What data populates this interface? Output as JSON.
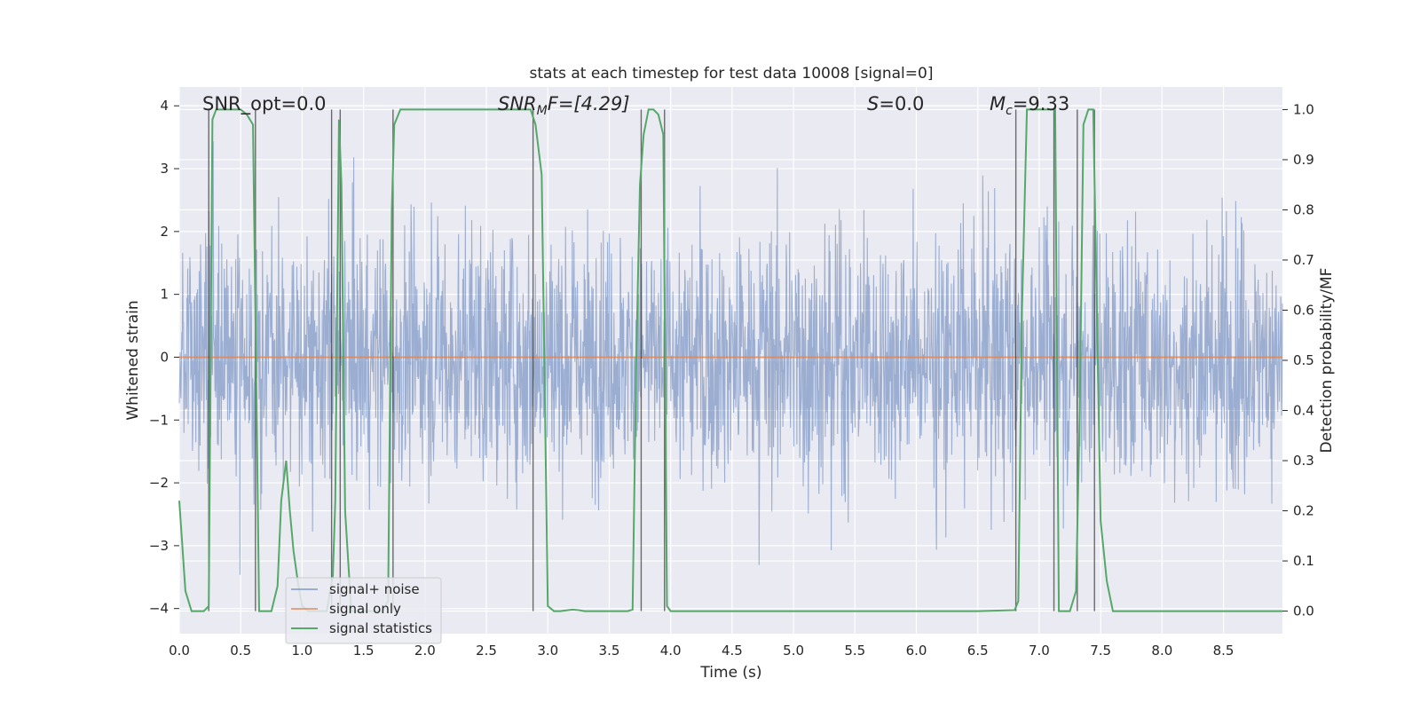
{
  "chart_data": {
    "type": "line",
    "title": "stats at each timestep for test data 10008 [signal=0]",
    "xlabel": "Time (s)",
    "ylabel_left": "Whitened strain",
    "ylabel_right": "Detection probability/MF",
    "xlim": [
      0.0,
      8.98
    ],
    "ylim_left": [
      -4.4,
      4.3
    ],
    "ylim_right": [
      -0.045,
      1.045
    ],
    "x_ticks": [
      "0.0",
      "0.5",
      "1.0",
      "1.5",
      "2.0",
      "2.5",
      "3.0",
      "3.5",
      "4.0",
      "4.5",
      "5.0",
      "5.5",
      "6.0",
      "6.5",
      "7.0",
      "7.5",
      "8.0",
      "8.5"
    ],
    "y_ticks_left": [
      "−4",
      "−3",
      "−2",
      "−1",
      "0",
      "1",
      "2",
      "3",
      "4"
    ],
    "y_ticks_right": [
      "0.0",
      "0.1",
      "0.2",
      "0.3",
      "0.4",
      "0.5",
      "0.6",
      "0.7",
      "0.8",
      "0.9",
      "1.0"
    ],
    "grid": true,
    "legend_position": "lower-left",
    "annotations": {
      "snr_opt": "SNR_opt=0.0",
      "snr_mf_base": "SNR",
      "snr_mf_sub": "M",
      "snr_mf_rest": "F=[4.29]",
      "s_base": "S",
      "s_rest": "=0.0",
      "mc_base": "M",
      "mc_sub": "c",
      "mc_rest": "=9.33"
    },
    "series": [
      {
        "name": "signal+ noise",
        "color": "#4c72b0",
        "description_noise": {
          "envelope_typical": 1.6,
          "peak_max": 4.0,
          "peak_min": -4.0
        }
      },
      {
        "name": "signal only",
        "color": "#dd8452",
        "y_constant": 0.0
      },
      {
        "name": "signal statistics",
        "color": "#55a868",
        "axis": "right",
        "x": [
          0.0,
          0.05,
          0.1,
          0.15,
          0.2,
          0.24,
          0.27,
          0.3,
          0.35,
          0.4,
          0.45,
          0.5,
          0.55,
          0.6,
          0.63,
          0.65,
          0.7,
          0.75,
          0.8,
          0.83,
          0.87,
          0.9,
          0.93,
          0.97,
          1.0,
          1.05,
          1.1,
          1.15,
          1.2,
          1.25,
          1.27,
          1.3,
          1.32,
          1.35,
          1.4,
          1.45,
          1.5,
          1.55,
          1.6,
          1.65,
          1.7,
          1.73,
          1.75,
          1.8,
          1.85,
          1.9,
          2.0,
          2.2,
          2.4,
          2.6,
          2.8,
          2.86,
          2.9,
          2.95,
          3.0,
          3.05,
          3.1,
          3.2,
          3.25,
          3.3,
          3.35,
          3.4,
          3.5,
          3.6,
          3.65,
          3.69,
          3.72,
          3.75,
          3.78,
          3.82,
          3.86,
          3.9,
          3.94,
          3.97,
          4.0,
          4.05,
          4.1,
          4.3,
          4.5,
          5.0,
          5.5,
          6.0,
          6.5,
          6.8,
          6.83,
          6.86,
          6.9,
          6.95,
          7.0,
          7.05,
          7.1,
          7.13,
          7.16,
          7.2,
          7.25,
          7.3,
          7.33,
          7.36,
          7.4,
          7.44,
          7.5,
          7.55,
          7.6,
          7.7,
          8.0,
          8.5,
          8.98
        ],
        "y": [
          0.22,
          0.04,
          0.0,
          0.0,
          0.0,
          0.01,
          0.98,
          1.0,
          1.0,
          1.0,
          1.0,
          1.0,
          0.99,
          0.97,
          0.4,
          0.0,
          0.0,
          0.0,
          0.05,
          0.22,
          0.3,
          0.2,
          0.12,
          0.05,
          0.01,
          0.0,
          0.0,
          0.0,
          0.0,
          0.07,
          0.22,
          0.98,
          0.85,
          0.2,
          0.0,
          0.0,
          0.0,
          0.0,
          0.0,
          0.0,
          0.02,
          0.8,
          0.97,
          1.0,
          1.0,
          1.0,
          1.0,
          1.0,
          1.0,
          1.0,
          1.0,
          1.0,
          0.97,
          0.87,
          0.01,
          0.0,
          0.0,
          0.003,
          0.002,
          0.0,
          0.0,
          0.0,
          0.0,
          0.0,
          0.0,
          0.003,
          0.5,
          0.85,
          0.95,
          1.0,
          1.0,
          0.99,
          0.95,
          0.01,
          0.0,
          0.0,
          0.0,
          0.0,
          0.0,
          0.0,
          0.0,
          0.0,
          0.0,
          0.002,
          0.02,
          0.6,
          1.0,
          1.0,
          1.0,
          1.0,
          1.0,
          1.0,
          0.0,
          0.0,
          0.0,
          0.04,
          0.4,
          0.97,
          1.0,
          1.0,
          0.18,
          0.06,
          0.0,
          0.0,
          0.0,
          0.0,
          0.0
        ]
      }
    ],
    "vlines_x": [
      0.24,
      0.62,
      1.24,
      1.31,
      1.74,
      2.88,
      3.76,
      3.95,
      6.81,
      7.12,
      7.31,
      7.45
    ]
  }
}
